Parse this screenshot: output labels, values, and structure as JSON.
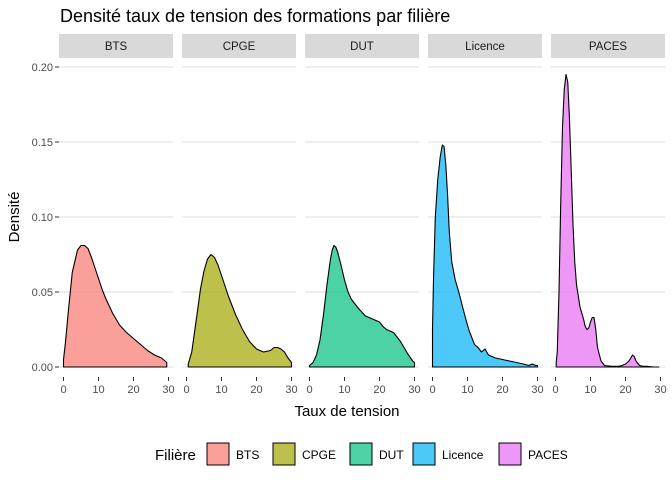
{
  "chart_data": {
    "type": "area",
    "title": "Densité taux de tension des formations par filière",
    "xlabel": "Taux de tension",
    "ylabel": "Densité",
    "xlim": [
      0,
      30
    ],
    "ylim": [
      0,
      0.2
    ],
    "x_ticks": [
      0,
      10,
      20,
      30
    ],
    "x_tick_labels": [
      "0",
      "10",
      "20",
      "30"
    ],
    "y_ticks": [
      0,
      0.05,
      0.1,
      0.15,
      0.2
    ],
    "y_tick_labels": [
      "0.00",
      "0.05",
      "0.10",
      "0.15",
      "0.20"
    ],
    "grid": true,
    "facets": [
      "BTS",
      "CPGE",
      "DUT",
      "Licence",
      "PACES"
    ],
    "legend": {
      "title": "Filière",
      "position": "bottom",
      "entries": [
        "BTS",
        "CPGE",
        "DUT",
        "Licence",
        "PACES"
      ]
    },
    "series": [
      {
        "name": "BTS",
        "color": "#F8766D",
        "x": [
          0,
          0.5,
          1.5,
          2.5,
          4,
          5,
          6,
          7,
          8,
          9,
          10,
          11,
          12,
          14,
          16,
          18,
          20,
          22,
          24,
          26,
          28,
          29.5
        ],
        "y": [
          0.005,
          0.015,
          0.04,
          0.063,
          0.078,
          0.081,
          0.081,
          0.079,
          0.073,
          0.066,
          0.059,
          0.052,
          0.046,
          0.036,
          0.028,
          0.023,
          0.019,
          0.015,
          0.011,
          0.008,
          0.006,
          0.003
        ]
      },
      {
        "name": "CPGE",
        "color": "#A3A500",
        "x": [
          0.5,
          1.5,
          3,
          4,
          5,
          6,
          7,
          8,
          9,
          10,
          12,
          14,
          16,
          18,
          20,
          22,
          24,
          25,
          26,
          27,
          28,
          29,
          30
        ],
        "y": [
          0.002,
          0.01,
          0.035,
          0.052,
          0.064,
          0.072,
          0.075,
          0.073,
          0.068,
          0.061,
          0.047,
          0.035,
          0.025,
          0.017,
          0.012,
          0.01,
          0.011,
          0.013,
          0.013,
          0.012,
          0.01,
          0.006,
          0.003
        ]
      },
      {
        "name": "DUT",
        "color": "#00BF7D",
        "x": [
          0,
          1,
          2,
          3,
          4,
          5,
          6,
          6.5,
          7,
          7.5,
          8,
          9,
          10,
          11,
          12,
          14,
          16,
          18,
          20,
          21,
          22,
          24,
          26,
          28,
          29.5,
          30
        ],
        "y": [
          0.001,
          0.003,
          0.008,
          0.018,
          0.035,
          0.055,
          0.072,
          0.078,
          0.081,
          0.08,
          0.077,
          0.068,
          0.058,
          0.05,
          0.045,
          0.039,
          0.034,
          0.032,
          0.03,
          0.027,
          0.025,
          0.023,
          0.017,
          0.009,
          0.004,
          0.003
        ]
      },
      {
        "name": "Licence",
        "color": "#00B0F6",
        "x": [
          0,
          0.3,
          0.8,
          1.5,
          2.2,
          2.8,
          3.3,
          3.8,
          4.3,
          4.8,
          5.5,
          6.5,
          7.5,
          8.5,
          9.5,
          10.5,
          12,
          13,
          14,
          15,
          16,
          17,
          18,
          20,
          22,
          24,
          26,
          27.5,
          28.5,
          29.5,
          30
        ],
        "y": [
          0.025,
          0.06,
          0.1,
          0.125,
          0.14,
          0.148,
          0.147,
          0.135,
          0.115,
          0.09,
          0.07,
          0.058,
          0.05,
          0.041,
          0.032,
          0.024,
          0.015,
          0.013,
          0.01,
          0.012,
          0.008,
          0.007,
          0.006,
          0.005,
          0.004,
          0.003,
          0.002,
          0.001,
          0.002,
          0.001,
          0.001
        ]
      },
      {
        "name": "PACES",
        "color": "#E76BF3",
        "x": [
          0.2,
          0.5,
          1,
          1.5,
          2,
          2.5,
          3,
          3.5,
          4,
          4.5,
          5,
          5.5,
          6,
          7,
          8,
          8.5,
          9,
          9.5,
          10,
          10.5,
          11,
          11.5,
          12,
          13,
          14,
          16,
          18,
          19,
          20,
          21,
          21.5,
          22,
          22.5,
          23,
          24,
          25,
          26,
          28,
          29.5
        ],
        "y": [
          0.003,
          0.01,
          0.05,
          0.11,
          0.16,
          0.185,
          0.195,
          0.19,
          0.165,
          0.13,
          0.095,
          0.07,
          0.055,
          0.04,
          0.032,
          0.027,
          0.025,
          0.026,
          0.03,
          0.033,
          0.033,
          0.025,
          0.013,
          0.004,
          0.001,
          0.0005,
          0.0005,
          0.001,
          0.002,
          0.004,
          0.006,
          0.008,
          0.007,
          0.004,
          0.001,
          0.0005,
          0.0005,
          0,
          0
        ]
      }
    ]
  }
}
